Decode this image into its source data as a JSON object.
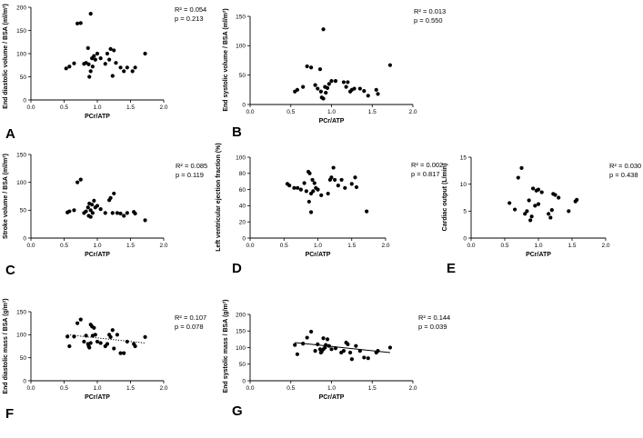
{
  "chart_data": [
    {
      "type": "scatter",
      "label": "A",
      "xlabel": "PCr/ATP",
      "ylabel": "End diastolic volume / BSA (ml/m²)",
      "xlim": [
        0,
        2
      ],
      "xticks": [
        "0.0",
        "0.5",
        "1.0",
        "1.5",
        "2.0"
      ],
      "ylim": [
        0,
        200
      ],
      "yticks": [
        "0",
        "50",
        "100",
        "150",
        "200"
      ],
      "r2": "R² = 0.054",
      "p": "p = 0.213",
      "fit": "none",
      "points": [
        [
          0.53,
          68
        ],
        [
          0.58,
          72
        ],
        [
          0.65,
          79
        ],
        [
          0.7,
          165
        ],
        [
          0.75,
          166
        ],
        [
          0.8,
          78
        ],
        [
          0.83,
          80
        ],
        [
          0.86,
          112
        ],
        [
          0.87,
          77
        ],
        [
          0.88,
          50
        ],
        [
          0.9,
          186
        ],
        [
          0.9,
          62
        ],
        [
          0.92,
          90
        ],
        [
          0.93,
          72
        ],
        [
          0.95,
          95
        ],
        [
          0.97,
          87
        ],
        [
          1.0,
          100
        ],
        [
          1.05,
          90
        ],
        [
          1.12,
          78
        ],
        [
          1.15,
          100
        ],
        [
          1.18,
          87
        ],
        [
          1.2,
          110
        ],
        [
          1.23,
          52
        ],
        [
          1.25,
          107
        ],
        [
          1.28,
          80
        ],
        [
          1.35,
          70
        ],
        [
          1.4,
          62
        ],
        [
          1.45,
          70
        ],
        [
          1.53,
          62
        ],
        [
          1.57,
          70
        ],
        [
          1.72,
          100
        ]
      ]
    },
    {
      "type": "scatter",
      "label": "B",
      "xlabel": "PCr/ATP",
      "ylabel": "End systolic volume / BSA (ml/m²)",
      "xlim": [
        0,
        2
      ],
      "xticks": [
        "0.0",
        "0.5",
        "1.0",
        "1.5",
        "2.0"
      ],
      "ylim": [
        0,
        150
      ],
      "yticks": [
        "0",
        "50",
        "100",
        "150"
      ],
      "r2": "R² = 0.013",
      "p": "p = 0.550",
      "fit": "none",
      "points": [
        [
          0.55,
          22
        ],
        [
          0.58,
          25
        ],
        [
          0.65,
          30
        ],
        [
          0.7,
          65
        ],
        [
          0.75,
          63
        ],
        [
          0.8,
          33
        ],
        [
          0.83,
          27
        ],
        [
          0.86,
          60
        ],
        [
          0.87,
          22
        ],
        [
          0.88,
          12
        ],
        [
          0.9,
          128
        ],
        [
          0.9,
          10
        ],
        [
          0.92,
          30
        ],
        [
          0.93,
          20
        ],
        [
          0.95,
          28
        ],
        [
          0.97,
          35
        ],
        [
          1.0,
          40
        ],
        [
          1.05,
          40
        ],
        [
          1.15,
          38
        ],
        [
          1.18,
          30
        ],
        [
          1.2,
          38
        ],
        [
          1.23,
          22
        ],
        [
          1.25,
          25
        ],
        [
          1.28,
          27
        ],
        [
          1.35,
          27
        ],
        [
          1.4,
          23
        ],
        [
          1.45,
          15
        ],
        [
          1.55,
          25
        ],
        [
          1.57,
          18
        ],
        [
          1.72,
          67
        ]
      ]
    },
    {
      "type": "scatter",
      "label": "C",
      "xlabel": "PCr/ATP",
      "ylabel": "Stroke volume / BSA (ml/m²)",
      "xlim": [
        0,
        2
      ],
      "xticks": [
        "0.0",
        "0.5",
        "1.0",
        "1.5",
        "2.0"
      ],
      "ylim": [
        0,
        150
      ],
      "yticks": [
        "0",
        "50",
        "100",
        "150"
      ],
      "r2": "R² = 0.085",
      "p": "p = 0.119",
      "fit": "none",
      "points": [
        [
          0.55,
          46
        ],
        [
          0.58,
          48
        ],
        [
          0.65,
          50
        ],
        [
          0.7,
          100
        ],
        [
          0.75,
          105
        ],
        [
          0.8,
          45
        ],
        [
          0.83,
          48
        ],
        [
          0.86,
          55
        ],
        [
          0.87,
          40
        ],
        [
          0.88,
          62
        ],
        [
          0.9,
          50
        ],
        [
          0.9,
          38
        ],
        [
          0.92,
          60
        ],
        [
          0.93,
          45
        ],
        [
          0.95,
          67
        ],
        [
          0.97,
          55
        ],
        [
          1.0,
          58
        ],
        [
          1.05,
          52
        ],
        [
          1.12,
          45
        ],
        [
          1.18,
          68
        ],
        [
          1.2,
          72
        ],
        [
          1.23,
          45
        ],
        [
          1.25,
          80
        ],
        [
          1.3,
          45
        ],
        [
          1.35,
          44
        ],
        [
          1.4,
          40
        ],
        [
          1.45,
          45
        ],
        [
          1.55,
          47
        ],
        [
          1.57,
          44
        ],
        [
          1.72,
          32
        ]
      ]
    },
    {
      "type": "scatter",
      "label": "D",
      "xlabel": "PCr/ATP",
      "ylabel": "Left ventricular ejection fraction (%)",
      "xlim": [
        0,
        2
      ],
      "xticks": [
        "0.0",
        "0.5",
        "1.0",
        "1.5",
        "2.0"
      ],
      "ylim": [
        0,
        100
      ],
      "yticks": [
        "0",
        "20",
        "40",
        "60",
        "80",
        "100"
      ],
      "r2": "R² = 0.002",
      "p": "p = 0.817",
      "fit": "none",
      "points": [
        [
          0.55,
          67
        ],
        [
          0.58,
          65
        ],
        [
          0.65,
          62
        ],
        [
          0.7,
          62
        ],
        [
          0.75,
          60
        ],
        [
          0.8,
          68
        ],
        [
          0.83,
          58
        ],
        [
          0.86,
          82
        ],
        [
          0.87,
          45
        ],
        [
          0.88,
          80
        ],
        [
          0.9,
          32
        ],
        [
          0.9,
          55
        ],
        [
          0.92,
          72
        ],
        [
          0.93,
          58
        ],
        [
          0.95,
          68
        ],
        [
          0.97,
          62
        ],
        [
          1.0,
          60
        ],
        [
          1.05,
          53
        ],
        [
          1.15,
          55
        ],
        [
          1.18,
          72
        ],
        [
          1.2,
          75
        ],
        [
          1.23,
          87
        ],
        [
          1.25,
          72
        ],
        [
          1.3,
          65
        ],
        [
          1.35,
          72
        ],
        [
          1.4,
          62
        ],
        [
          1.5,
          67
        ],
        [
          1.55,
          75
        ],
        [
          1.57,
          63
        ],
        [
          1.72,
          33
        ]
      ]
    },
    {
      "type": "scatter",
      "label": "E",
      "xlabel": "PCr/ATP",
      "ylabel": "Cardiac output (L/min)",
      "xlim": [
        0,
        2
      ],
      "xticks": [
        "0.0",
        "0.5",
        "1.0",
        "1.5",
        "2.0"
      ],
      "ylim": [
        0,
        15
      ],
      "yticks": [
        "0",
        "5",
        "10",
        "15"
      ],
      "r2": "R² = 0.030",
      "p": "p = 0.438",
      "fit": "none",
      "points": [
        [
          0.57,
          6.5
        ],
        [
          0.65,
          5.3
        ],
        [
          0.7,
          11.2
        ],
        [
          0.75,
          13
        ],
        [
          0.8,
          4.5
        ],
        [
          0.83,
          5
        ],
        [
          0.86,
          7
        ],
        [
          0.88,
          3.3
        ],
        [
          0.9,
          4
        ],
        [
          0.92,
          9.2
        ],
        [
          0.95,
          6
        ],
        [
          0.97,
          8.8
        ],
        [
          1.0,
          9
        ],
        [
          1.0,
          6.3
        ],
        [
          1.05,
          8.5
        ],
        [
          1.15,
          4.5
        ],
        [
          1.18,
          3.8
        ],
        [
          1.2,
          5.2
        ],
        [
          1.22,
          8.2
        ],
        [
          1.25,
          8
        ],
        [
          1.3,
          7.5
        ],
        [
          1.45,
          5
        ],
        [
          1.55,
          6.8
        ],
        [
          1.57,
          7.1
        ]
      ]
    },
    {
      "type": "scatter",
      "label": "F",
      "xlabel": "PCr/ATP",
      "ylabel": "End diastolic mass / BSA (g/m²)",
      "xlim": [
        0,
        2
      ],
      "xticks": [
        "0.0",
        "0.5",
        "1.0",
        "1.5",
        "2.0"
      ],
      "ylim": [
        0,
        150
      ],
      "yticks": [
        "0",
        "50",
        "100",
        "150"
      ],
      "r2": "R² = 0.107",
      "p": "p = 0.078",
      "fit": "dotted",
      "fit_line": [
        [
          0.55,
          100
        ],
        [
          1.72,
          82
        ]
      ],
      "points": [
        [
          0.55,
          96
        ],
        [
          0.58,
          75
        ],
        [
          0.65,
          96
        ],
        [
          0.7,
          125
        ],
        [
          0.75,
          133
        ],
        [
          0.8,
          85
        ],
        [
          0.83,
          98
        ],
        [
          0.86,
          80
        ],
        [
          0.87,
          75
        ],
        [
          0.88,
          72
        ],
        [
          0.9,
          122
        ],
        [
          0.9,
          82
        ],
        [
          0.92,
          118
        ],
        [
          0.93,
          98
        ],
        [
          0.95,
          115
        ],
        [
          0.97,
          100
        ],
        [
          1.0,
          85
        ],
        [
          1.05,
          82
        ],
        [
          1.12,
          75
        ],
        [
          1.15,
          80
        ],
        [
          1.18,
          100
        ],
        [
          1.2,
          95
        ],
        [
          1.23,
          110
        ],
        [
          1.25,
          70
        ],
        [
          1.3,
          100
        ],
        [
          1.35,
          60
        ],
        [
          1.4,
          60
        ],
        [
          1.45,
          85
        ],
        [
          1.55,
          80
        ],
        [
          1.57,
          75
        ],
        [
          1.72,
          95
        ]
      ]
    },
    {
      "type": "scatter",
      "label": "G",
      "xlabel": "PCr/ATP",
      "ylabel": "End systolic mass / BSA (g/m²)",
      "xlim": [
        0,
        2
      ],
      "xticks": [
        "0.0",
        "0.5",
        "1.0",
        "1.5",
        "2.0"
      ],
      "ylim": [
        0,
        200
      ],
      "yticks": [
        "0",
        "50",
        "100",
        "150",
        "200"
      ],
      "r2": "R² = 0.144",
      "p": "p = 0.039",
      "fit": "solid",
      "fit_line": [
        [
          0.55,
          115
        ],
        [
          1.72,
          85
        ]
      ],
      "points": [
        [
          0.55,
          108
        ],
        [
          0.58,
          80
        ],
        [
          0.65,
          112
        ],
        [
          0.7,
          130
        ],
        [
          0.75,
          148
        ],
        [
          0.8,
          90
        ],
        [
          0.83,
          110
        ],
        [
          0.86,
          95
        ],
        [
          0.87,
          85
        ],
        [
          0.88,
          88
        ],
        [
          0.9,
          128
        ],
        [
          0.9,
          95
        ],
        [
          0.92,
          100
        ],
        [
          0.93,
          108
        ],
        [
          0.95,
          125
        ],
        [
          0.97,
          105
        ],
        [
          1.0,
          95
        ],
        [
          1.05,
          98
        ],
        [
          1.12,
          85
        ],
        [
          1.15,
          90
        ],
        [
          1.18,
          115
        ],
        [
          1.2,
          110
        ],
        [
          1.23,
          85
        ],
        [
          1.25,
          65
        ],
        [
          1.3,
          105
        ],
        [
          1.35,
          90
        ],
        [
          1.4,
          70
        ],
        [
          1.45,
          68
        ],
        [
          1.55,
          85
        ],
        [
          1.57,
          90
        ],
        [
          1.72,
          100
        ]
      ]
    }
  ]
}
